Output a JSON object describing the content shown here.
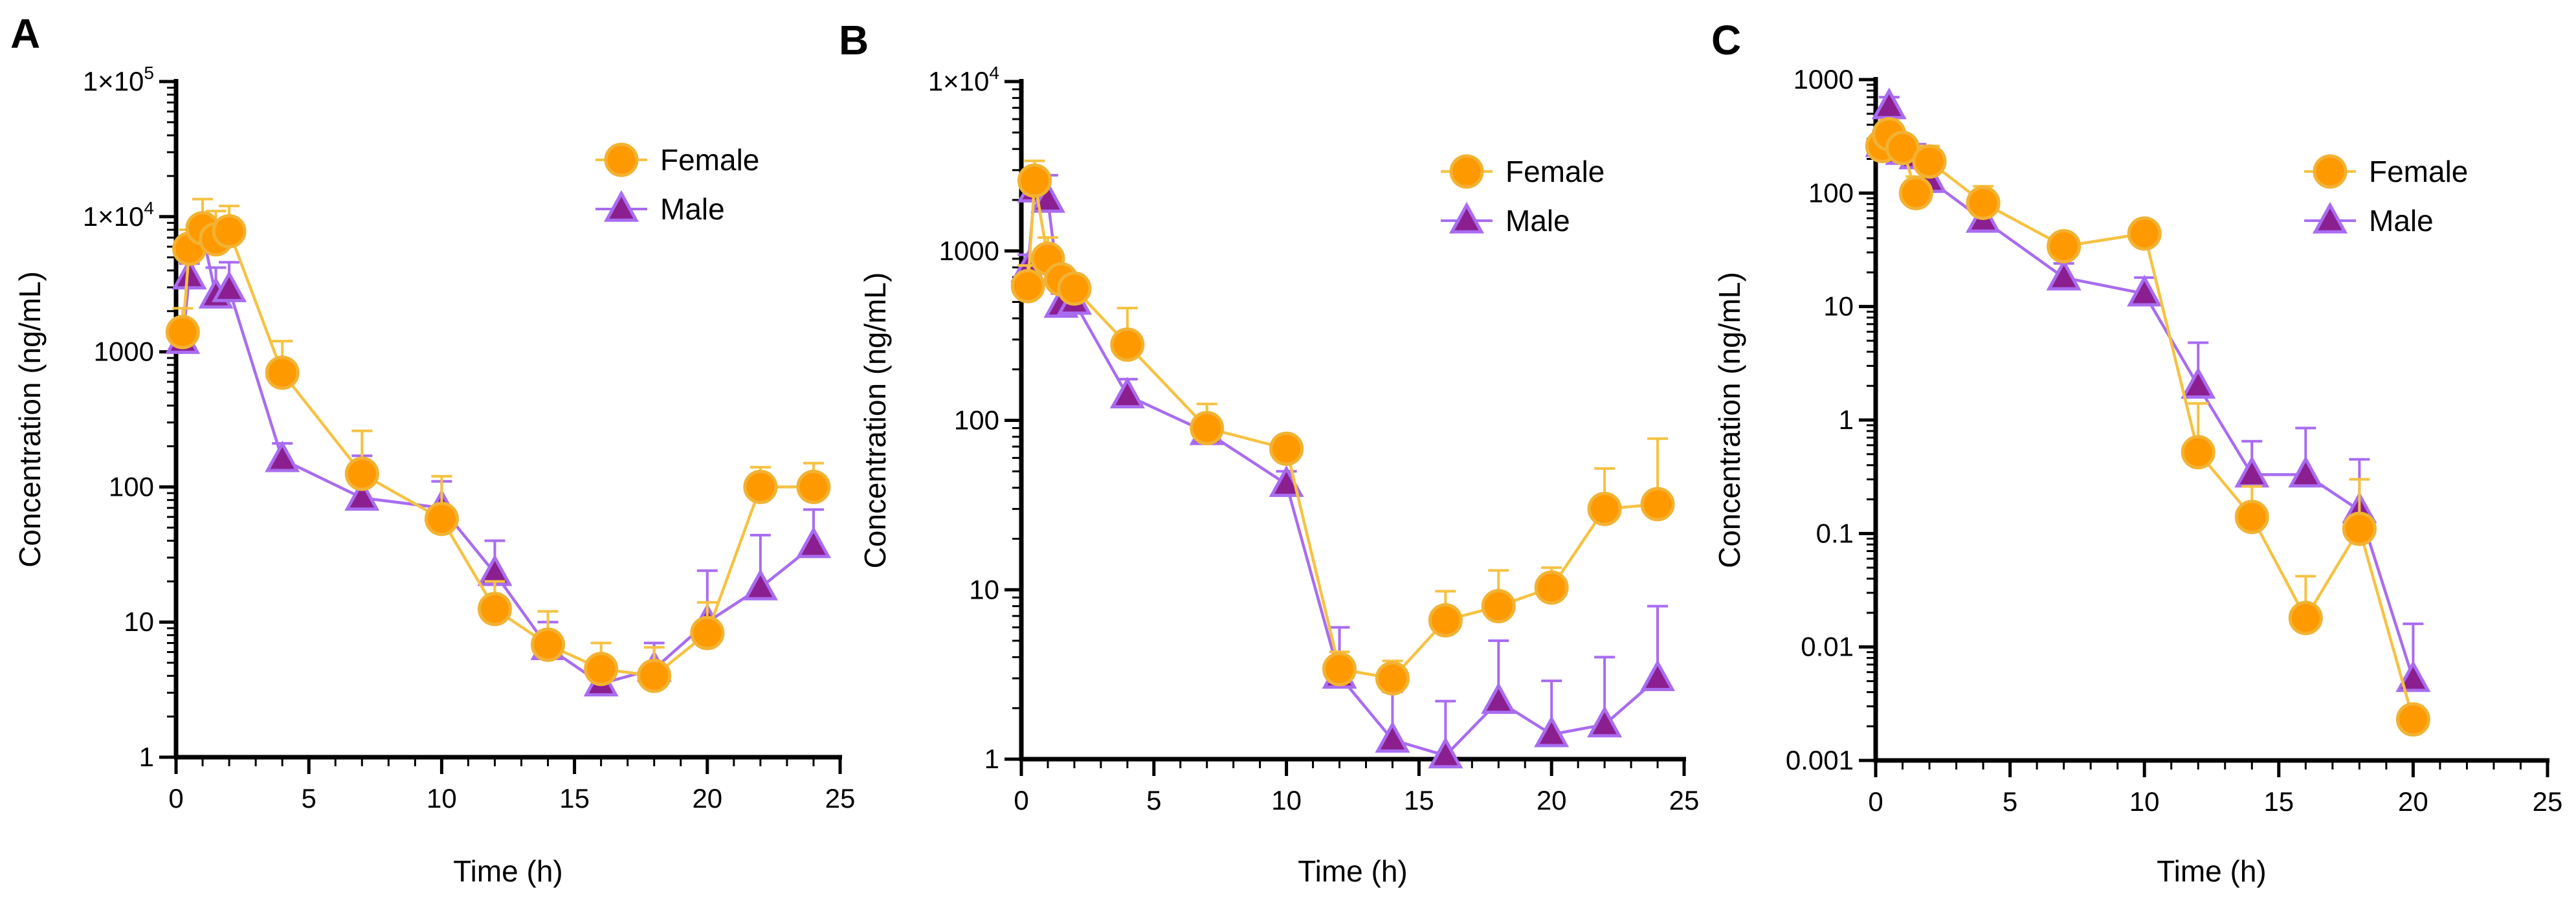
{
  "figure": {
    "series_names": [
      "Female",
      "Male"
    ],
    "colors": {
      "female_line": "#f5c242",
      "female_marker": "#ff9900",
      "female_marker_edge": "#f2b233",
      "male_line": "#a86cf0",
      "male_marker": "#8b1f8f",
      "male_marker_edge": "#a86cf0",
      "axis": "#000000"
    },
    "marker_shapes": {
      "Female": "circle",
      "Male": "triangle"
    }
  },
  "chart_data": [
    {
      "panel": "A",
      "type": "line",
      "scale": "log",
      "xlabel": "Time (h)",
      "ylabel": "Concentration (ng/mL)",
      "xlim": [
        0,
        25
      ],
      "ylim": [
        1,
        100000
      ],
      "xticks": [
        0,
        5,
        10,
        15,
        20,
        25
      ],
      "yticks": [
        1,
        10,
        100,
        1000,
        10000,
        100000
      ],
      "ytick_labels": [
        "1",
        "10",
        "100",
        "1000",
        "1×10",
        "1×10"
      ],
      "ytick_sup": [
        "",
        "",
        "",
        "",
        "4",
        "5"
      ],
      "legend_position": "top-right",
      "series": [
        {
          "name": "Female",
          "x": [
            0.25,
            0.5,
            1,
            1.5,
            2,
            4,
            7,
            10,
            12,
            14,
            16,
            18,
            20,
            22,
            24
          ],
          "y": [
            1400,
            5800,
            8200,
            6800,
            7800,
            700,
            125,
            58,
            12.5,
            6.8,
            4.5,
            4.0,
            8.3,
            100,
            100
          ],
          "err_upper": [
            2100,
            8000,
            13500,
            11000,
            12000,
            1200,
            260,
            120,
            20,
            12,
            7,
            6.5,
            14,
            140,
            150
          ]
        },
        {
          "name": "Male",
          "x": [
            0.25,
            0.5,
            1,
            1.5,
            2,
            4,
            7,
            10,
            12,
            14,
            16,
            18,
            20,
            22,
            24
          ],
          "y": [
            1200,
            3600,
            7500,
            2600,
            2900,
            160,
            83,
            70,
            23,
            6.5,
            3.5,
            4.5,
            10,
            18,
            37
          ],
          "err_upper": [
            1700,
            4500,
            9500,
            4200,
            4600,
            210,
            170,
            110,
            40,
            10,
            5.5,
            7,
            24,
            44,
            68
          ]
        }
      ]
    },
    {
      "panel": "B",
      "type": "line",
      "scale": "log",
      "xlabel": "Time (h)",
      "ylabel": "Concentration (ng/mL)",
      "xlim": [
        0,
        25
      ],
      "ylim": [
        1,
        10000
      ],
      "xticks": [
        0,
        5,
        10,
        15,
        20,
        25
      ],
      "yticks": [
        1,
        10,
        100,
        1000,
        10000
      ],
      "ytick_labels": [
        "1",
        "10",
        "100",
        "1000",
        "1×10"
      ],
      "ytick_sup": [
        "",
        "",
        "",
        "",
        "4"
      ],
      "legend_position": "top-right",
      "series": [
        {
          "name": "Female",
          "x": [
            0.25,
            0.5,
            1,
            1.5,
            2,
            4,
            7,
            10,
            12,
            14,
            16,
            18,
            20,
            22,
            24
          ],
          "y": [
            620,
            2600,
            900,
            680,
            600,
            280,
            90,
            68,
            3.4,
            3.0,
            6.6,
            8.0,
            10.3,
            30,
            32
          ],
          "err_upper": [
            820,
            3400,
            1200,
            750,
            720,
            460,
            125,
            80,
            4.3,
            3.8,
            9.8,
            13,
            13.5,
            52,
            78
          ]
        },
        {
          "name": "Male",
          "x": [
            0.25,
            0.5,
            1,
            1.5,
            2,
            4,
            7,
            10,
            12,
            14,
            16,
            18,
            20,
            22,
            24
          ],
          "y": [
            780,
            2300,
            2000,
            480,
            500,
            140,
            85,
            42,
            3.1,
            1.3,
            1.05,
            2.2,
            1.4,
            1.6,
            3.0
          ],
          "err_upper": [
            950,
            2800,
            2800,
            560,
            580,
            175,
            100,
            50,
            6.0,
            2.5,
            2.2,
            5.0,
            2.9,
            4.0,
            8.0
          ]
        }
      ]
    },
    {
      "panel": "C",
      "type": "line",
      "scale": "log",
      "xlabel": "Time (h)",
      "ylabel": "Concentration (ng/mL)",
      "xlim": [
        0,
        25
      ],
      "ylim": [
        0.001,
        1000
      ],
      "xticks": [
        0,
        5,
        10,
        15,
        20,
        25
      ],
      "yticks": [
        0.001,
        0.01,
        0.1,
        1,
        10,
        100,
        1000
      ],
      "ytick_labels": [
        "0.001",
        "0.01",
        "0.1",
        "1",
        "10",
        "100",
        "1000"
      ],
      "ytick_sup": [
        "",
        "",
        "",
        "",
        "",
        "",
        ""
      ],
      "legend_position": "top-right",
      "series": [
        {
          "name": "Female",
          "x": [
            0.25,
            0.5,
            1,
            1.5,
            2,
            4,
            7,
            10,
            12,
            14,
            16,
            18,
            20
          ],
          "y": [
            260,
            330,
            250,
            100,
            190,
            82,
            34,
            44,
            0.52,
            0.14,
            0.018,
            0.11,
            0.0023
          ],
          "err_upper": [
            320,
            440,
            310,
            140,
            260,
            115,
            42,
            56,
            1.4,
            0.26,
            0.042,
            0.3,
            0.003
          ]
        },
        {
          "name": "Male",
          "x": [
            0.25,
            0.5,
            1,
            1.5,
            2,
            4,
            7,
            10,
            12,
            14,
            16,
            18,
            20
          ],
          "y": [
            270,
            580,
            230,
            210,
            130,
            58,
            18,
            13,
            2.0,
            0.33,
            0.33,
            0.16,
            0.0052
          ],
          "err_upper": [
            350,
            700,
            300,
            270,
            170,
            72,
            24,
            18,
            4.8,
            0.65,
            0.85,
            0.45,
            0.016
          ]
        }
      ]
    }
  ]
}
